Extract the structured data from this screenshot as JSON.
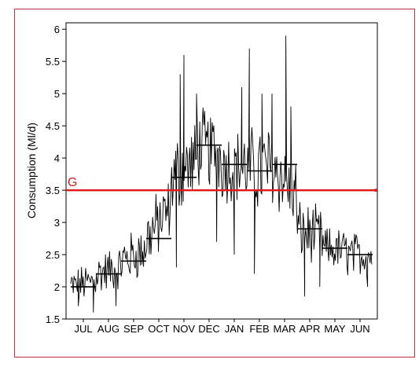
{
  "chart_data": {
    "type": "line",
    "title": "",
    "xlabel": "",
    "ylabel": "Consumption (Ml/d)",
    "ylim": [
      1.5,
      6.1
    ],
    "yticks": [
      "1.5",
      "2",
      "2.5",
      "3",
      "3.5",
      "4",
      "4.5",
      "5",
      "5.5",
      "6"
    ],
    "categories": [
      "JUL",
      "AUG",
      "SEP",
      "OCT",
      "NOV",
      "DEC",
      "JAN",
      "FEB",
      "MAR",
      "APR",
      "MAY",
      "JUN"
    ],
    "grid": false,
    "legend": "none",
    "series": [
      {
        "kind": "monthly-mean",
        "color": "#000000",
        "values": [
          2.0,
          2.2,
          2.4,
          2.75,
          3.7,
          4.2,
          3.9,
          3.8,
          3.9,
          2.9,
          2.6,
          2.5
        ]
      },
      {
        "kind": "daily-consumption",
        "color": "#000000",
        "mean_by_month": [
          2.0,
          2.2,
          2.4,
          2.75,
          3.7,
          4.2,
          3.9,
          3.8,
          3.9,
          2.9,
          2.6,
          2.5
        ],
        "spread_by_month": [
          0.25,
          0.3,
          0.35,
          0.45,
          0.55,
          0.55,
          0.5,
          0.6,
          0.55,
          0.4,
          0.3,
          0.3
        ],
        "peaks": [
          {
            "x": 4.5,
            "y": 5.6
          },
          {
            "x": 4.35,
            "y": 5.3
          },
          {
            "x": 5.0,
            "y": 5.0
          },
          {
            "x": 6.8,
            "y": 5.1
          },
          {
            "x": 7.1,
            "y": 5.7
          },
          {
            "x": 7.6,
            "y": 5.0
          },
          {
            "x": 8.0,
            "y": 5.0
          },
          {
            "x": 8.55,
            "y": 5.9
          },
          {
            "x": 8.75,
            "y": 4.8
          }
        ],
        "troughs": [
          {
            "x": 0.3,
            "y": 1.7
          },
          {
            "x": 0.9,
            "y": 1.6
          },
          {
            "x": 1.8,
            "y": 1.7
          },
          {
            "x": 4.2,
            "y": 2.3
          },
          {
            "x": 5.8,
            "y": 2.7
          },
          {
            "x": 6.5,
            "y": 2.5
          },
          {
            "x": 7.3,
            "y": 2.2
          },
          {
            "x": 9.3,
            "y": 1.85
          },
          {
            "x": 9.9,
            "y": 2.0
          },
          {
            "x": 11.8,
            "y": 2.0
          }
        ]
      }
    ],
    "reference_line": {
      "label": "G",
      "y": 3.5,
      "color": "#e01b1b"
    }
  }
}
